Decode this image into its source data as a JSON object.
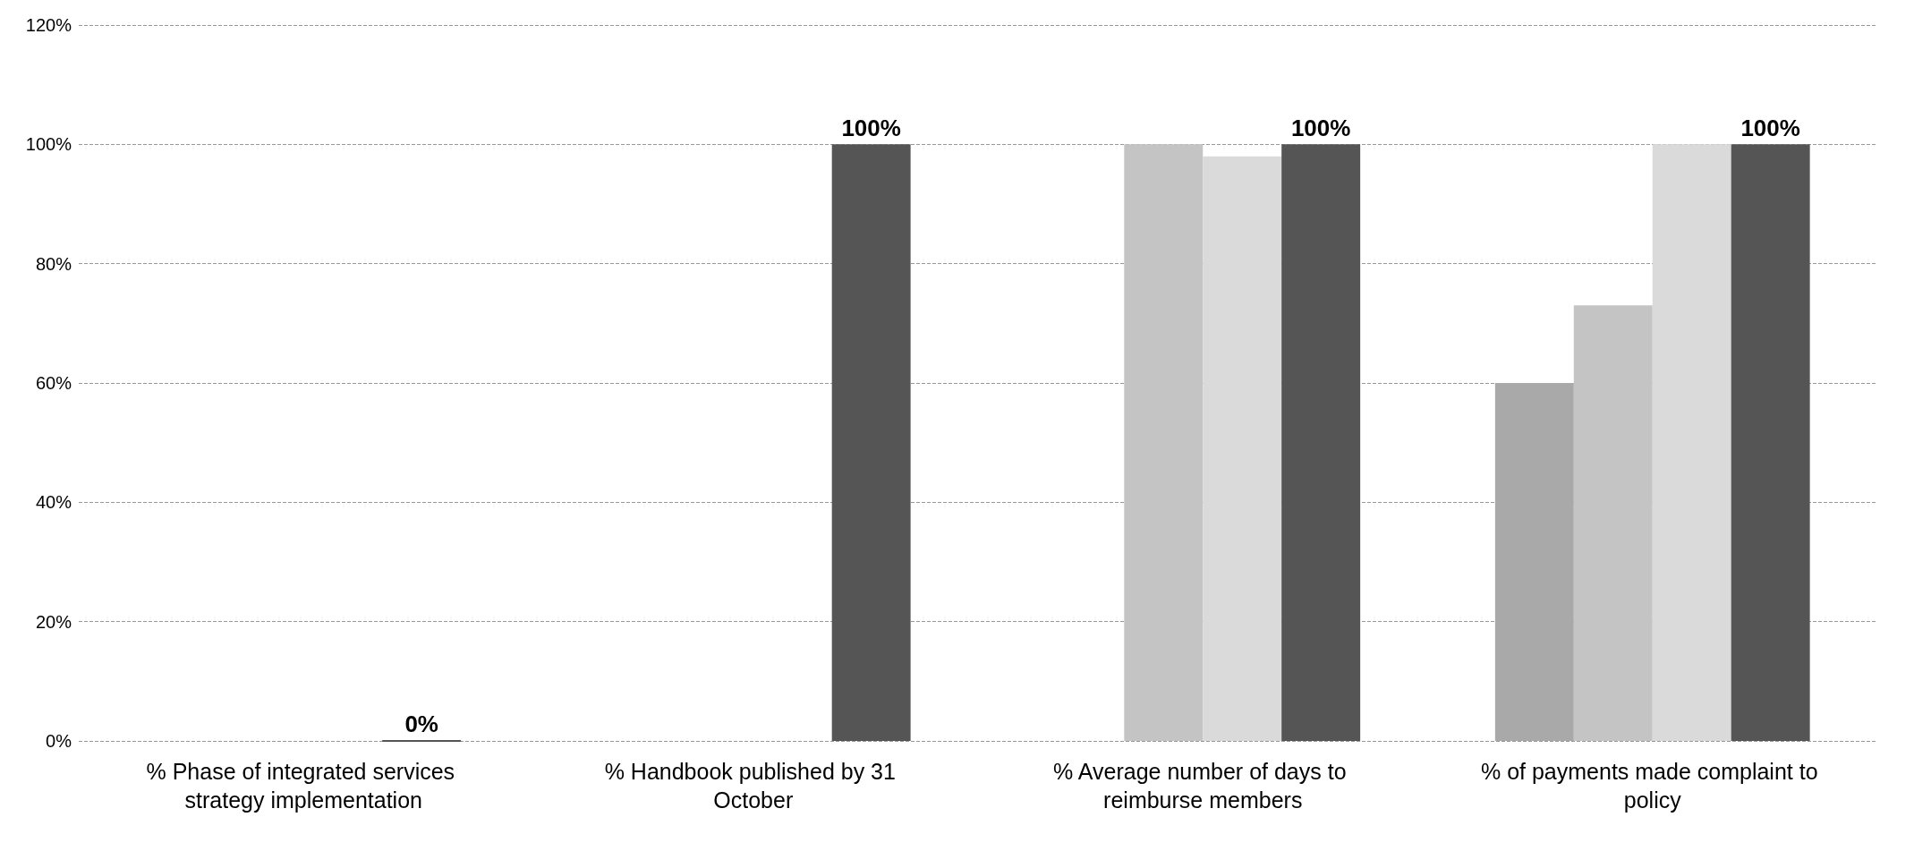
{
  "chart_data": {
    "type": "bar",
    "categories": [
      "% Phase of integrated services strategy implementation",
      "% Handbook published by 31 October",
      "% Average number of days to reimburse members",
      "% of payments made complaint to policy"
    ],
    "series": [
      {
        "color": "#a9a9a9",
        "values": [
          null,
          null,
          null,
          60
        ]
      },
      {
        "color": "#c4c4c4",
        "values": [
          null,
          null,
          100,
          73
        ]
      },
      {
        "color": "#dadada",
        "values": [
          null,
          null,
          98,
          100
        ]
      },
      {
        "color": "#555555",
        "values": [
          0,
          100,
          100,
          100
        ],
        "value_labels": [
          "0%",
          "100%",
          "100%",
          "100%"
        ]
      }
    ],
    "ylim": [
      0,
      120
    ],
    "yticks": [
      {
        "value": 0,
        "label": "0%"
      },
      {
        "value": 20,
        "label": "20%"
      },
      {
        "value": 40,
        "label": "40%"
      },
      {
        "value": 60,
        "label": "60%"
      },
      {
        "value": 80,
        "label": "80%"
      },
      {
        "value": 100,
        "label": "100%"
      },
      {
        "value": 120,
        "label": "120%"
      }
    ],
    "grid": "y"
  }
}
